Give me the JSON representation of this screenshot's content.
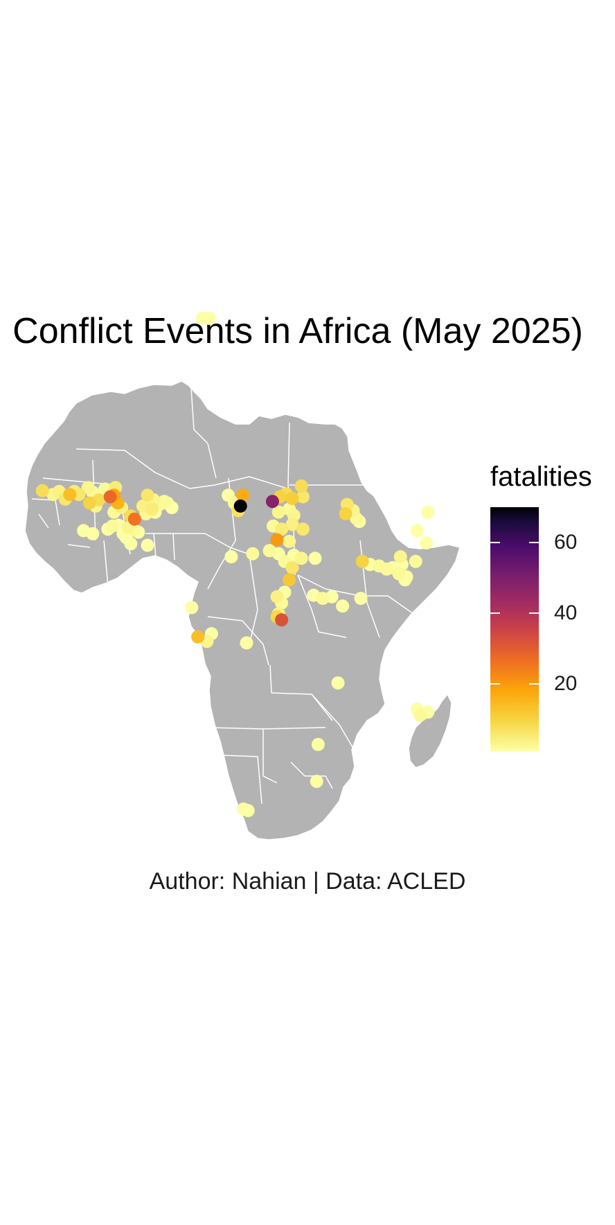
{
  "title": "Conflict Events in Africa (May 2025)",
  "caption": "Author: Nahian | Data: ACLED",
  "colors": {
    "land": "#b3b3b3",
    "borders": "#ffffff",
    "background": "#ffffff",
    "palette": "inferno"
  },
  "legend": {
    "title": "fatalities",
    "breaks": [
      {
        "label": "20",
        "value": 20
      },
      {
        "label": "40",
        "value": 40
      },
      {
        "label": "60",
        "value": 60
      }
    ],
    "range": [
      1,
      70
    ]
  },
  "chart_data": {
    "type": "scatter",
    "x_unit": "longitude",
    "y_unit": "latitude",
    "color_variable": "fatalities",
    "points": [
      {
        "lon": 10.2,
        "lat": 36.8,
        "fatalities": 1
      },
      {
        "lon": 11.1,
        "lat": 36.8,
        "fatalities": 1
      },
      {
        "lon": -10.8,
        "lat": 14.4,
        "fatalities": 8
      },
      {
        "lon": -9.4,
        "lat": 13.9,
        "fatalities": 3
      },
      {
        "lon": -8.6,
        "lat": 14.3,
        "fatalities": 4
      },
      {
        "lon": -7.8,
        "lat": 13.3,
        "fatalities": 6
      },
      {
        "lon": -7.2,
        "lat": 13.9,
        "fatalities": 14
      },
      {
        "lon": -6.6,
        "lat": 14.3,
        "fatalities": 5
      },
      {
        "lon": -6.0,
        "lat": 13.9,
        "fatalities": 6
      },
      {
        "lon": -4.8,
        "lat": 14.8,
        "fatalities": 3
      },
      {
        "lon": -4.2,
        "lat": 14.2,
        "fatalities": 2
      },
      {
        "lon": -3.8,
        "lat": 12.4,
        "fatalities": 3
      },
      {
        "lon": -3.4,
        "lat": 13.2,
        "fatalities": 8
      },
      {
        "lon": -3.0,
        "lat": 13.6,
        "fatalities": 2
      },
      {
        "lon": -2.6,
        "lat": 14.6,
        "fatalities": 2
      },
      {
        "lon": -4.6,
        "lat": 12.8,
        "fatalities": 10
      },
      {
        "lon": -1.9,
        "lat": 13.6,
        "fatalities": 28
      },
      {
        "lon": -1.4,
        "lat": 13.8,
        "fatalities": 18
      },
      {
        "lon": -0.9,
        "lat": 12.8,
        "fatalities": 16
      },
      {
        "lon": -1.4,
        "lat": 11.6,
        "fatalities": 2
      },
      {
        "lon": -0.4,
        "lat": 12.2,
        "fatalities": 4
      },
      {
        "lon": 0.8,
        "lat": 11.1,
        "fatalities": 8
      },
      {
        "lon": 1.3,
        "lat": 10.7,
        "fatalities": 26
      },
      {
        "lon": 2.4,
        "lat": 12.4,
        "fatalities": 4
      },
      {
        "lon": 3.0,
        "lat": 13.8,
        "fatalities": 6
      },
      {
        "lon": 3.8,
        "lat": 13.2,
        "fatalities": 3
      },
      {
        "lon": 4.6,
        "lat": 12.6,
        "fatalities": 2
      },
      {
        "lon": 5.2,
        "lat": 13.0,
        "fatalities": 2
      },
      {
        "lon": 6.2,
        "lat": 12.2,
        "fatalities": 1
      },
      {
        "lon": 3.6,
        "lat": 12.0,
        "fatalities": 5
      },
      {
        "lon": -5.4,
        "lat": 9.2,
        "fatalities": 1
      },
      {
        "lon": -4.2,
        "lat": 8.8,
        "fatalities": 1
      },
      {
        "lon": -1.6,
        "lat": 9.8,
        "fatalities": 2
      },
      {
        "lon": -0.8,
        "lat": 9.9,
        "fatalities": 1
      },
      {
        "lon": -0.2,
        "lat": 8.8,
        "fatalities": 1
      },
      {
        "lon": 0.5,
        "lat": 9.6,
        "fatalities": 3
      },
      {
        "lon": 1.2,
        "lat": 9.3,
        "fatalities": 2
      },
      {
        "lon": 1.8,
        "lat": 9.0,
        "fatalities": 1
      },
      {
        "lon": 0.2,
        "lat": 8.3,
        "fatalities": 1
      },
      {
        "lon": 0.8,
        "lat": 7.5,
        "fatalities": 1
      },
      {
        "lon": 3.0,
        "lat": 7.3,
        "fatalities": 1
      },
      {
        "lon": 13.6,
        "lat": 13.8,
        "fatalities": 1
      },
      {
        "lon": 14.4,
        "lat": 12.8,
        "fatalities": 2
      },
      {
        "lon": 14.9,
        "lat": 11.8,
        "fatalities": 7
      },
      {
        "lon": 15.2,
        "lat": 12.4,
        "fatalities": 70
      },
      {
        "lon": 15.5,
        "lat": 13.8,
        "fatalities": 17
      },
      {
        "lon": 19.4,
        "lat": 13.0,
        "fatalities": 48
      },
      {
        "lon": 20.4,
        "lat": 13.6,
        "fatalities": 10
      },
      {
        "lon": 21.2,
        "lat": 14.0,
        "fatalities": 8
      },
      {
        "lon": 22.0,
        "lat": 13.4,
        "fatalities": 11
      },
      {
        "lon": 23.2,
        "lat": 15.0,
        "fatalities": 8
      },
      {
        "lon": 23.4,
        "lat": 13.6,
        "fatalities": 6
      },
      {
        "lon": 20.2,
        "lat": 11.6,
        "fatalities": 3
      },
      {
        "lon": 21.6,
        "lat": 12.0,
        "fatalities": 2
      },
      {
        "lon": 22.2,
        "lat": 11.2,
        "fatalities": 3
      },
      {
        "lon": 19.5,
        "lat": 9.8,
        "fatalities": 2
      },
      {
        "lon": 20.6,
        "lat": 9.4,
        "fatalities": 5
      },
      {
        "lon": 22.0,
        "lat": 10.0,
        "fatalities": 4
      },
      {
        "lon": 23.4,
        "lat": 9.4,
        "fatalities": 6
      },
      {
        "lon": 20.0,
        "lat": 8.0,
        "fatalities": 20
      },
      {
        "lon": 21.6,
        "lat": 7.8,
        "fatalities": 3
      },
      {
        "lon": 19.0,
        "lat": 6.6,
        "fatalities": 2
      },
      {
        "lon": 20.2,
        "lat": 6.2,
        "fatalities": 1
      },
      {
        "lon": 21.0,
        "lat": 5.2,
        "fatalities": 2
      },
      {
        "lon": 22.2,
        "lat": 6.0,
        "fatalities": 1
      },
      {
        "lon": 22.0,
        "lat": 4.4,
        "fatalities": 6
      },
      {
        "lon": 23.2,
        "lat": 5.6,
        "fatalities": 3
      },
      {
        "lon": 21.6,
        "lat": 2.8,
        "fatalities": 12
      },
      {
        "lon": 14.0,
        "lat": 5.8,
        "fatalities": 1
      },
      {
        "lon": 16.8,
        "lat": 6.2,
        "fatalities": 2
      },
      {
        "lon": 20.0,
        "lat": 0.6,
        "fatalities": 4
      },
      {
        "lon": 20.6,
        "lat": -0.2,
        "fatalities": 2
      },
      {
        "lon": 20.2,
        "lat": -1.6,
        "fatalities": 4
      },
      {
        "lon": 20.6,
        "lat": -2.4,
        "fatalities": 32
      },
      {
        "lon": 20.0,
        "lat": -2.0,
        "fatalities": 9
      },
      {
        "lon": 24.8,
        "lat": 0.8,
        "fatalities": 1
      },
      {
        "lon": 26.0,
        "lat": 0.4,
        "fatalities": 2
      },
      {
        "lon": 27.2,
        "lat": 0.6,
        "fatalities": 1
      },
      {
        "lon": 28.6,
        "lat": -0.6,
        "fatalities": 1
      },
      {
        "lon": 31.0,
        "lat": 0.4,
        "fatalities": 1
      },
      {
        "lon": 29.0,
        "lat": 11.4,
        "fatalities": 10
      },
      {
        "lon": 30.0,
        "lat": 11.8,
        "fatalities": 3
      },
      {
        "lon": 30.4,
        "lat": 10.8,
        "fatalities": 2
      },
      {
        "lon": 30.8,
        "lat": 10.4,
        "fatalities": 1
      },
      {
        "lon": 31.2,
        "lat": 5.2,
        "fatalities": 10
      },
      {
        "lon": 32.2,
        "lat": 4.8,
        "fatalities": 1
      },
      {
        "lon": 33.4,
        "lat": 4.6,
        "fatalities": 2
      },
      {
        "lon": 34.4,
        "lat": 4.2,
        "fatalities": 2
      },
      {
        "lon": 35.2,
        "lat": 4.4,
        "fatalities": 1
      },
      {
        "lon": 36.4,
        "lat": 4.8,
        "fatalities": 1
      },
      {
        "lon": 36.2,
        "lat": 5.8,
        "fatalities": 3
      },
      {
        "lon": 36.0,
        "lat": 3.6,
        "fatalities": 2
      },
      {
        "lon": 37.0,
        "lat": 3.2,
        "fatalities": 1
      },
      {
        "lon": 38.2,
        "lat": 5.2,
        "fatalities": 2
      },
      {
        "lon": 36.8,
        "lat": 2.8,
        "fatalities": 1
      },
      {
        "lon": 39.6,
        "lat": 7.6,
        "fatalities": 1
      },
      {
        "lon": 38.4,
        "lat": 9.2,
        "fatalities": 1
      },
      {
        "lon": 39.8,
        "lat": 11.6,
        "fatalities": 1
      },
      {
        "lon": 8.8,
        "lat": -0.8,
        "fatalities": 1
      },
      {
        "lon": 9.6,
        "lat": -4.6,
        "fatalities": 14
      },
      {
        "lon": 10.8,
        "lat": -5.2,
        "fatalities": 3
      },
      {
        "lon": 11.4,
        "lat": -4.2,
        "fatalities": 1
      },
      {
        "lon": 16.0,
        "lat": -5.4,
        "fatalities": 1
      },
      {
        "lon": 28.0,
        "lat": -10.6,
        "fatalities": 1
      },
      {
        "lon": 38.4,
        "lat": -14.0,
        "fatalities": 1
      },
      {
        "lon": 38.8,
        "lat": -14.8,
        "fatalities": 2
      },
      {
        "lon": 39.8,
        "lat": -14.4,
        "fatalities": 1
      },
      {
        "lon": 25.4,
        "lat": -18.6,
        "fatalities": 1
      },
      {
        "lon": 25.2,
        "lat": -23.4,
        "fatalities": 1
      },
      {
        "lon": 15.6,
        "lat": -27.0,
        "fatalities": 1
      },
      {
        "lon": 16.2,
        "lat": -27.2,
        "fatalities": 1
      },
      {
        "lon": -1.2,
        "lat": 14.8,
        "fatalities": 5
      },
      {
        "lon": 2.8,
        "lat": 11.4,
        "fatalities": 2
      },
      {
        "lon": 4.0,
        "lat": 11.6,
        "fatalities": 1
      },
      {
        "lon": 5.6,
        "lat": 12.8,
        "fatalities": 1
      },
      {
        "lon": -2.2,
        "lat": 9.4,
        "fatalities": 1
      },
      {
        "lon": 25.0,
        "lat": 5.6,
        "fatalities": 1
      },
      {
        "lon": 29.2,
        "lat": 12.6,
        "fatalities": 6
      },
      {
        "lon": 21.0,
        "lat": 1.2,
        "fatalities": 1
      }
    ]
  }
}
